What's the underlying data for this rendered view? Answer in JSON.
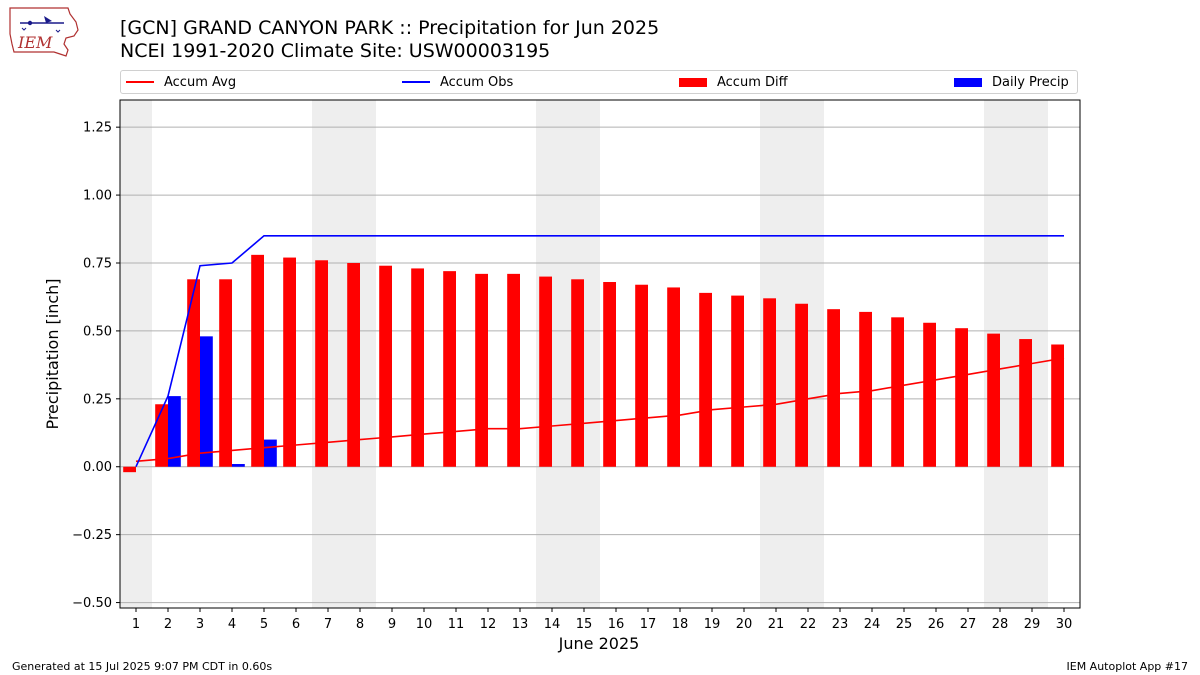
{
  "header": {
    "title": "[GCN] GRAND CANYON PARK :: Precipitation for Jun 2025",
    "subtitle": "NCEI 1991-2020 Climate Site: USW00003195",
    "logo_text": "IEM"
  },
  "legend": [
    {
      "label": "Accum Avg",
      "kind": "line",
      "color": "#ff0000"
    },
    {
      "label": "Accum Obs",
      "kind": "line",
      "color": "#0000ff"
    },
    {
      "label": "Accum Diff",
      "kind": "patch",
      "color": "#ff0000"
    },
    {
      "label": "Daily Precip",
      "kind": "patch",
      "color": "#0000ff"
    }
  ],
  "footer": {
    "left": "Generated at 15 Jul 2025 9:07 PM CDT in 0.60s",
    "right": "IEM Autoplot App #17"
  },
  "chart_data": {
    "type": "bar",
    "xlabel": "June 2025",
    "ylabel": "Precipitation [inch]",
    "ylim": [
      -0.52,
      1.35
    ],
    "xlim": [
      0.5,
      30.5
    ],
    "x_ticks": [
      "1",
      "2",
      "3",
      "4",
      "5",
      "6",
      "7",
      "8",
      "9",
      "10",
      "11",
      "12",
      "13",
      "14",
      "15",
      "16",
      "17",
      "18",
      "19",
      "20",
      "21",
      "22",
      "23",
      "24",
      "25",
      "26",
      "27",
      "28",
      "29",
      "30"
    ],
    "y_ticks": [
      -0.5,
      -0.25,
      0.0,
      0.25,
      0.5,
      0.75,
      1.0,
      1.25
    ],
    "y_tick_labels": [
      "−0.50",
      "−0.25",
      "0.00",
      "0.25",
      "0.50",
      "0.75",
      "1.00",
      "1.25"
    ],
    "grid": "horizontal",
    "legend_placement": "top",
    "weekend_shading": [
      [
        0.5,
        1.5
      ],
      [
        6.5,
        8.5
      ],
      [
        13.5,
        15.5
      ],
      [
        20.5,
        22.5
      ],
      [
        27.5,
        29.5
      ]
    ],
    "series": [
      {
        "name": "Accum Avg",
        "type": "line",
        "color": "#ff0000",
        "x": [
          1,
          2,
          3,
          4,
          5,
          6,
          7,
          8,
          9,
          10,
          11,
          12,
          13,
          14,
          15,
          16,
          17,
          18,
          19,
          20,
          21,
          22,
          23,
          24,
          25,
          26,
          27,
          28,
          29,
          30
        ],
        "values": [
          0.02,
          0.03,
          0.05,
          0.06,
          0.07,
          0.08,
          0.09,
          0.1,
          0.11,
          0.12,
          0.13,
          0.14,
          0.14,
          0.15,
          0.16,
          0.17,
          0.18,
          0.19,
          0.21,
          0.22,
          0.23,
          0.25,
          0.27,
          0.28,
          0.3,
          0.32,
          0.34,
          0.36,
          0.38,
          0.4
        ]
      },
      {
        "name": "Accum Obs",
        "type": "line",
        "color": "#0000ff",
        "x": [
          1,
          2,
          3,
          4,
          5,
          6,
          7,
          8,
          9,
          10,
          11,
          12,
          13,
          14,
          15,
          16,
          17,
          18,
          19,
          20,
          21,
          22,
          23,
          24,
          25,
          26,
          27,
          28,
          29,
          30
        ],
        "values": [
          0.0,
          0.26,
          0.74,
          0.75,
          0.85,
          0.85,
          0.85,
          0.85,
          0.85,
          0.85,
          0.85,
          0.85,
          0.85,
          0.85,
          0.85,
          0.85,
          0.85,
          0.85,
          0.85,
          0.85,
          0.85,
          0.85,
          0.85,
          0.85,
          0.85,
          0.85,
          0.85,
          0.85,
          0.85,
          0.85
        ]
      },
      {
        "name": "Accum Diff",
        "type": "bar",
        "color": "#ff0000",
        "x": [
          1,
          2,
          3,
          4,
          5,
          6,
          7,
          8,
          9,
          10,
          11,
          12,
          13,
          14,
          15,
          16,
          17,
          18,
          19,
          20,
          21,
          22,
          23,
          24,
          25,
          26,
          27,
          28,
          29,
          30
        ],
        "values": [
          -0.02,
          0.23,
          0.69,
          0.69,
          0.78,
          0.77,
          0.76,
          0.75,
          0.74,
          0.73,
          0.72,
          0.71,
          0.71,
          0.7,
          0.69,
          0.68,
          0.67,
          0.66,
          0.64,
          0.63,
          0.62,
          0.6,
          0.58,
          0.57,
          0.55,
          0.53,
          0.51,
          0.49,
          0.47,
          0.45
        ]
      },
      {
        "name": "Daily Precip",
        "type": "bar",
        "color": "#0000ff",
        "x": [
          2,
          3,
          4,
          5
        ],
        "values": [
          0.26,
          0.48,
          0.01,
          0.1
        ]
      }
    ]
  }
}
